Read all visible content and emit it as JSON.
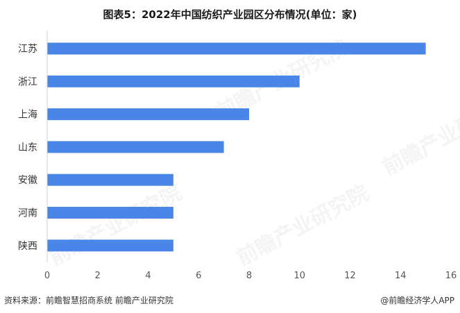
{
  "chart_data": {
    "type": "bar",
    "orientation": "horizontal",
    "title": "图表5：2022年中国纺织产业园区分布情况(单位：家)",
    "categories": [
      "江苏",
      "浙江",
      "上海",
      "山东",
      "安徽",
      "河南",
      "陕西"
    ],
    "values": [
      15,
      10,
      8,
      7,
      5,
      5,
      5
    ],
    "xlim": [
      0,
      16
    ],
    "xticks": [
      0,
      2,
      4,
      6,
      8,
      10,
      12,
      14,
      16
    ],
    "grid": false,
    "legend": "none",
    "bar_color": "#4a86e8"
  },
  "footer": {
    "source": "资料来源：前瞻智慧招商系统 前瞻产业研究院",
    "brand": "@前瞻经济学人APP"
  },
  "watermark": {
    "text": "前瞻产业研究院"
  }
}
